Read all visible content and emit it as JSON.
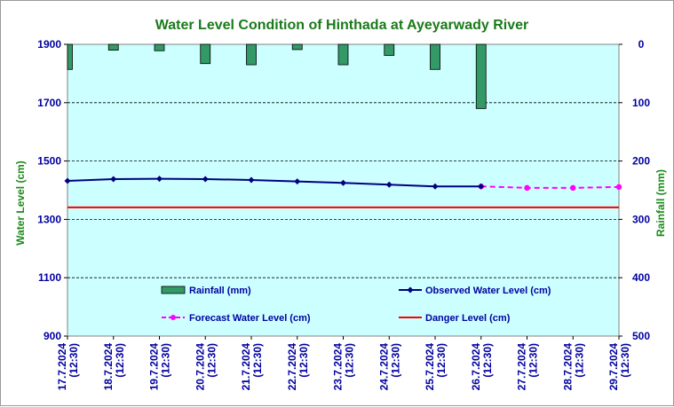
{
  "chart_data": {
    "type": "line",
    "title": "Water Level Condition of Hinthada at Ayeyarwady River",
    "ylabel": "Water Level (cm)",
    "y2label": "Rainfall (mm)",
    "ylim": [
      900,
      1900
    ],
    "y_ticks": [
      900,
      1100,
      1300,
      1500,
      1700,
      1900
    ],
    "y2lim": [
      0,
      500
    ],
    "y2_ticks": [
      0,
      100,
      200,
      300,
      400,
      500
    ],
    "y2_inverted": true,
    "grid": true,
    "categories": [
      {
        "date": "17.7.2024",
        "time": "(12:30)"
      },
      {
        "date": "18.7.2024",
        "time": "(12:30)"
      },
      {
        "date": "19.7.2024",
        "time": "(12:30)"
      },
      {
        "date": "20.7.2024",
        "time": "(12:30)"
      },
      {
        "date": "21.7.2024",
        "time": "(12:30)"
      },
      {
        "date": "22.7.2024",
        "time": "(12:30)"
      },
      {
        "date": "23.7.2024",
        "time": "(12:30)"
      },
      {
        "date": "24.7.2024",
        "time": "(12:30)"
      },
      {
        "date": "25.7.2024",
        "time": "(12:30)"
      },
      {
        "date": "26.7.2024",
        "time": "(12:30)"
      },
      {
        "date": "27.7.2024",
        "time": "(12:30)"
      },
      {
        "date": "28.7.2024",
        "time": "(12:30)"
      },
      {
        "date": "29.7.2024",
        "time": "(12:30)"
      }
    ],
    "series": [
      {
        "name": "Rainfall (mm)",
        "type": "bar",
        "axis": "y2",
        "color": "#339966",
        "values": [
          43,
          10,
          11,
          33,
          35,
          9,
          35,
          19,
          43,
          110,
          null,
          null,
          null
        ]
      },
      {
        "name": "Observed Water Level (cm)",
        "type": "line",
        "axis": "y",
        "color": "#000080",
        "values": [
          1432,
          1438,
          1439,
          1438,
          1435,
          1430,
          1425,
          1419,
          1413,
          1413,
          null,
          null,
          null
        ]
      },
      {
        "name": "Forecast Water Level (cm)",
        "type": "line",
        "dashed": true,
        "axis": "y",
        "color": "#ff00ff",
        "values": [
          null,
          null,
          null,
          null,
          null,
          null,
          null,
          null,
          null,
          1413,
          1408,
          1408,
          1411
        ]
      },
      {
        "name": "Danger Level (cm)",
        "type": "line",
        "axis": "y",
        "color": "#ff0000",
        "values": [
          1341,
          1341,
          1341,
          1341,
          1341,
          1341,
          1341,
          1341,
          1341,
          1341,
          1341,
          1341,
          1341
        ]
      }
    ],
    "legend": "inside-bottom"
  }
}
